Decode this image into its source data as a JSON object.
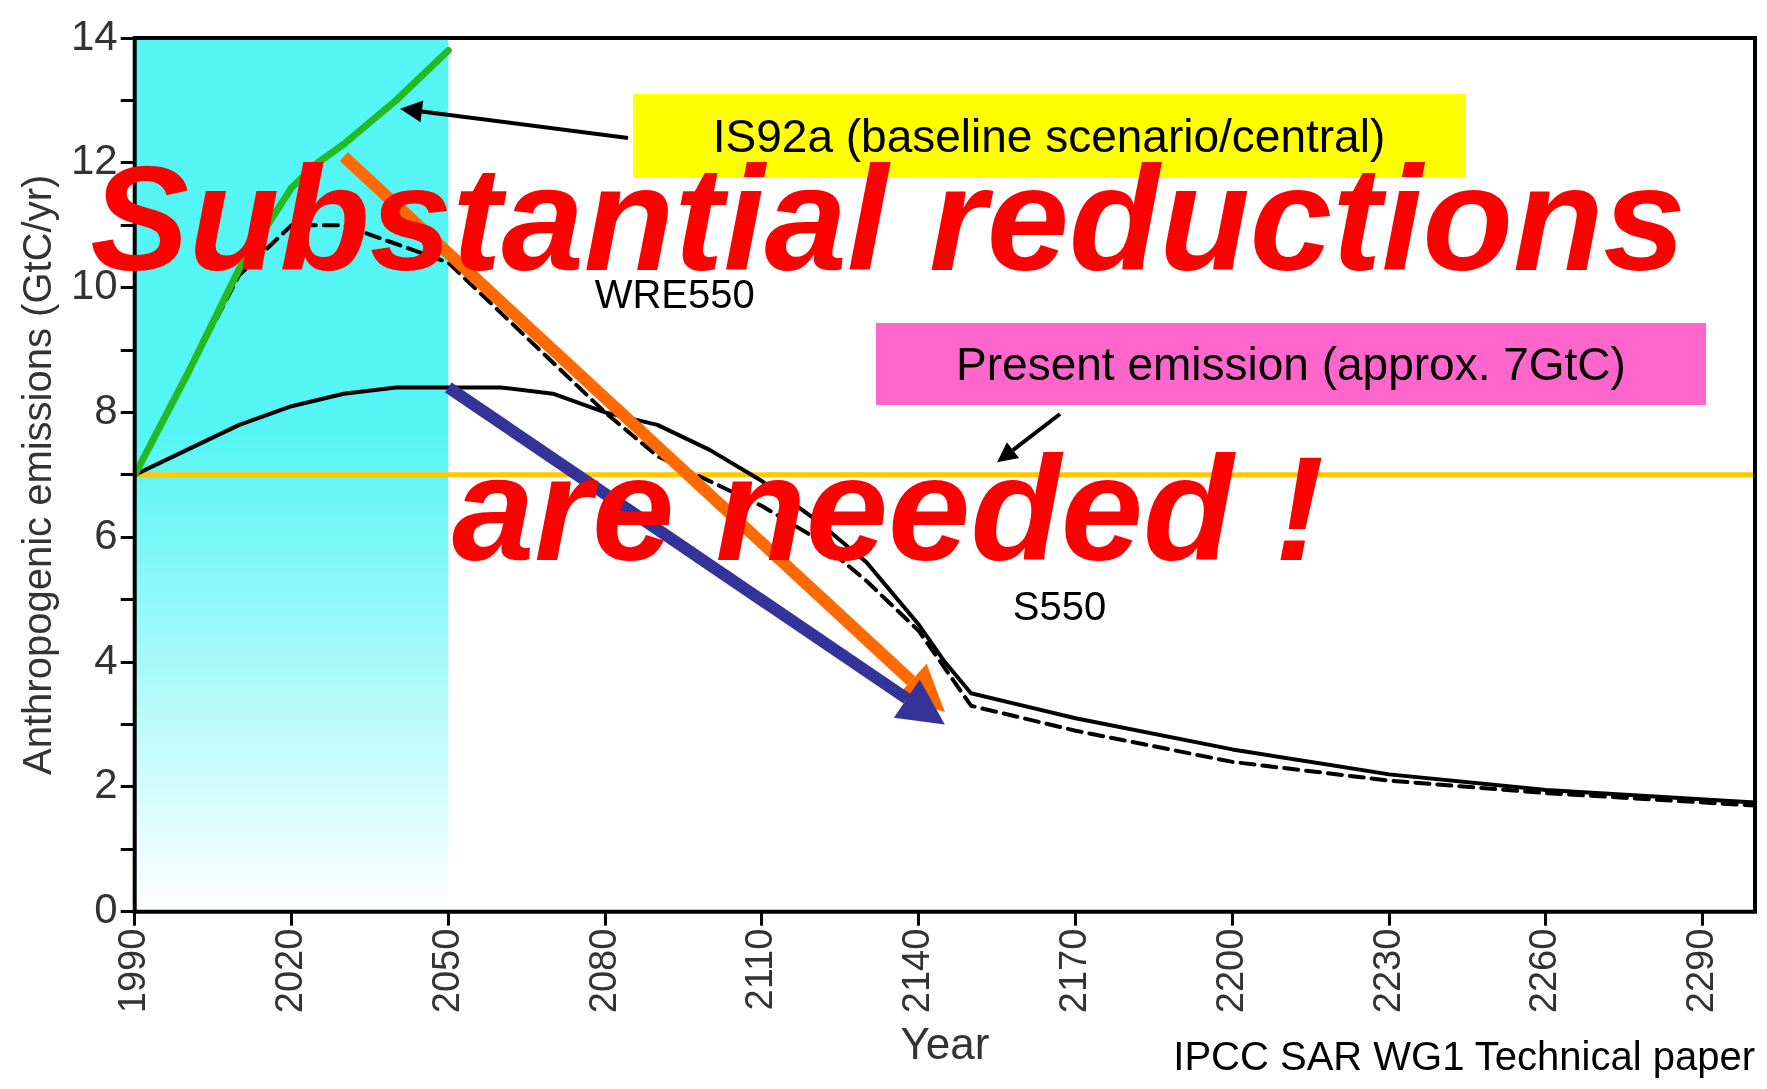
{
  "chart_data": {
    "type": "line",
    "xlabel": "Year",
    "ylabel": "Anthropogenic emissions (GtC/yr)",
    "xlim": [
      1990,
      2300
    ],
    "xticks": [
      1990,
      2020,
      2050,
      2080,
      2110,
      2140,
      2170,
      2200,
      2230,
      2260,
      2290
    ],
    "ylim": [
      0,
      14
    ],
    "yticks": [
      0,
      {
        "value": 1,
        "label": null
      },
      2,
      {
        "value": 3,
        "label": null
      },
      4,
      {
        "value": 5,
        "label": null
      },
      6,
      {
        "value": 7,
        "label": null
      },
      8,
      {
        "value": 9,
        "label": null
      },
      10,
      {
        "value": 11,
        "label": null
      },
      12,
      {
        "value": 13,
        "label": null
      },
      14
    ],
    "grid": false,
    "legend": false,
    "marker": "none",
    "series": [
      {
        "color": "#22bb22",
        "x": [
          1990,
          2000,
          2010,
          2020,
          2025,
          2030,
          2040,
          2050
        ],
        "values": [
          7,
          8.6,
          10.3,
          11.6,
          12.0,
          12.3,
          13.0,
          13.8
        ]
      },
      {
        "name": "WRE550",
        "color": "#000000",
        "line_style": "dashed",
        "x": [
          1990,
          2000,
          2010,
          2020,
          2030,
          2040,
          2050,
          2060,
          2070,
          2080,
          2090,
          2100,
          2110,
          2120,
          2130,
          2140,
          2150,
          2170,
          2200,
          2230,
          2260,
          2300
        ],
        "values": [
          7,
          null,
          10.2,
          11.0,
          11.0,
          null,
          10.4,
          9.6,
          8.8,
          8.0,
          7.3,
          6.9,
          6.5,
          6.0,
          5.3,
          4.5,
          3.3,
          2.9,
          2.4,
          2.1,
          1.9,
          1.7
        ]
      },
      {
        "name": "S550",
        "color": "#000000",
        "line_style": "solid",
        "x": [
          1990,
          2000,
          2010,
          2020,
          2030,
          2040,
          2060,
          2070,
          2080,
          2090,
          2100,
          2110,
          2120,
          2130,
          2140,
          2145,
          2150,
          2170,
          2200,
          2230,
          2260,
          2300
        ],
        "values": [
          7,
          7.4,
          7.8,
          8.1,
          8.3,
          8.4,
          8.4,
          8.3,
          8.0,
          7.8,
          7.4,
          6.9,
          6.3,
          5.6,
          4.6,
          4.0,
          3.5,
          3.1,
          2.6,
          2.2,
          1.95,
          1.75
        ]
      }
    ],
    "ref_lines": [
      {
        "axis": "y",
        "value": 7,
        "label": "Present emission (approx. 7GtC)",
        "color": "#ffc800"
      }
    ],
    "bands": [
      {
        "axis": "x",
        "from": 1990,
        "to": 2050,
        "color": "#55f5f5"
      }
    ],
    "annotations": [
      "Substantial reductions are needed !",
      "IS92a (baseline scenario/central)",
      "IPCC SAR WG1 Technical paper"
    ]
  }
}
